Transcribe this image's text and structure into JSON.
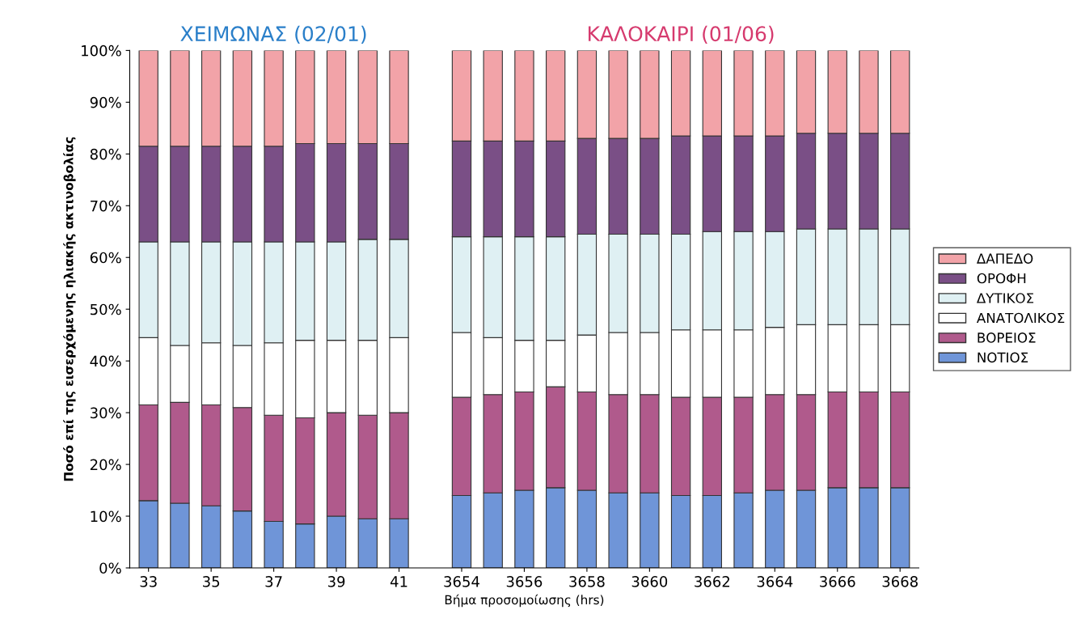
{
  "chart_data": {
    "type": "bar",
    "stacked": true,
    "ylabel": "Ποσό επί της εισερχόμενης ηλιακής ακτινοβολίας",
    "xlabel": "Βήμα προσομοίωσης (hrs)",
    "annotations": [
      "ΧΕΙΜΩΝΑΣ (02/01)",
      "ΚΑΛΟΚΑΙΡΙ (01/06)"
    ],
    "categories": [
      "33",
      null,
      "35",
      null,
      "37",
      null,
      "39",
      null,
      "41",
      null,
      "3654",
      null,
      "3656",
      null,
      "3658",
      null,
      "3660",
      null,
      "3662",
      null,
      "3664",
      null,
      "3666",
      null,
      "3668"
    ],
    "series": [
      {
        "name": "ΝΟΤΙΟΣ",
        "color": "#6f95d8",
        "values": [
          13,
          12.5,
          12,
          11,
          9,
          8.5,
          10,
          9.5,
          9.5,
          null,
          14,
          14.5,
          15,
          15.5,
          15,
          14.5,
          14.5,
          14,
          14,
          14.5,
          15,
          15,
          15.5,
          15.5,
          15.5
        ]
      },
      {
        "name": "ΒΟΡΕΙΟΣ",
        "color": "#b05a8c",
        "values": [
          18.5,
          19.5,
          19.5,
          20,
          20.5,
          20.5,
          20,
          20,
          20.5,
          null,
          19,
          19,
          19,
          19.5,
          19,
          19,
          19,
          19,
          19,
          18.5,
          18.5,
          18.5,
          18.5,
          18.5,
          18.5
        ]
      },
      {
        "name": "ΑΝΑΤΟΛΙΚΟΣ",
        "color": "#ffffff",
        "values": [
          13,
          11,
          12,
          12,
          14,
          15,
          14,
          14.5,
          14.5,
          null,
          12.5,
          11,
          10,
          9,
          11,
          12,
          12,
          13,
          13,
          13,
          13,
          13.5,
          13,
          13,
          13
        ]
      },
      {
        "name": "ΔΥΤΙΚΟΣ",
        "color": "#dff0f3",
        "values": [
          18.5,
          20,
          19.5,
          20,
          19.5,
          19,
          19,
          19.5,
          19,
          null,
          18.5,
          19.5,
          20,
          20,
          19.5,
          19,
          19,
          18.5,
          19,
          19,
          18.5,
          18.5,
          18.5,
          18.5,
          18.5
        ]
      },
      {
        "name": "ΟΡΟΦΗ",
        "color": "#7a4f86",
        "values": [
          18.5,
          18.5,
          18.5,
          18.5,
          18.5,
          19,
          19,
          18.5,
          18.5,
          null,
          18.5,
          18.5,
          18.5,
          18.5,
          18.5,
          18.5,
          18.5,
          19,
          18.5,
          18.5,
          18.5,
          18.5,
          18.5,
          18.5,
          18.5
        ]
      },
      {
        "name": "ΔΑΠΕΔΟ",
        "color": "#f2a3a8",
        "values": [
          18.5,
          18.5,
          18.5,
          18.5,
          18.5,
          18,
          18,
          18,
          18,
          null,
          17.5,
          17.5,
          17.5,
          17.5,
          17,
          17,
          17,
          16.5,
          16.5,
          16.5,
          16.5,
          16,
          16,
          16,
          16
        ]
      }
    ],
    "ylim": [
      0,
      100
    ],
    "yticks": [
      {
        "value": 0,
        "label": "0%"
      },
      {
        "value": 10,
        "label": "10%"
      },
      {
        "value": 20,
        "label": "20%"
      },
      {
        "value": 30,
        "label": "30%"
      },
      {
        "value": 40,
        "label": "40%"
      },
      {
        "value": 50,
        "label": "50%"
      },
      {
        "value": 60,
        "label": "60%"
      },
      {
        "value": 70,
        "label": "70%"
      },
      {
        "value": 80,
        "label": "80%"
      },
      {
        "value": 90,
        "label": "90%"
      },
      {
        "value": 100,
        "label": "100%"
      }
    ],
    "legend": "right",
    "grid": false
  }
}
